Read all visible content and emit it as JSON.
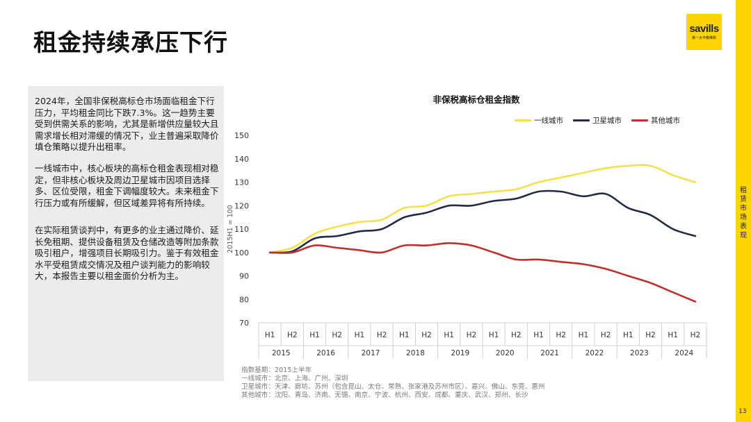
{
  "page": {
    "title": "租金持续承压下行",
    "logo_text": "savills",
    "logo_tagline": "第一太平戴维斯",
    "side_label": "租赁市场表现",
    "page_number": "13"
  },
  "text_panel": {
    "paragraphs": [
      "2024年，全国非保税高标仓市场面临租金下行压力，平均租金同比下跌7.3%。这一趋势主要受到供需关系的影响，尤其是新增供应量较大且需求增长相对滞缓的情况下，业主普遍采取降价填仓策略以提升出租率。",
      "一线城市中，核心板块的高标仓租金表现相对稳定，但非核心板块及周边卫星城市因项目选择多、区位受限，租金下调幅度较大。未来租金下行压力或有所缓解，但区域差异将有所持续。",
      "在实际租赁谈判中，有更多的业主通过降价、延长免租期、提供设备租赁及仓储改造等附加条款吸引租户，增强项目长期吸引力。鉴于有效租金水平受租赁成交情况及租户谈判能力的影响较大，本报告主要以租金面价分析为主。"
    ]
  },
  "chart_data": {
    "type": "line",
    "title": "非保税高标仓租金指数",
    "ylabel": "2015H1 = 100",
    "xlabel": "",
    "ylim": [
      70,
      150
    ],
    "yticks": [
      70,
      80,
      90,
      100,
      110,
      120,
      130,
      140,
      150
    ],
    "legend_position": "top-right",
    "grid": false,
    "categories": [
      "H1",
      "H2",
      "H1",
      "H2",
      "H1",
      "H2",
      "H1",
      "H2",
      "H1",
      "H2",
      "H1",
      "H2",
      "H1",
      "H2",
      "H1",
      "H2",
      "H1",
      "H2",
      "H1",
      "H2"
    ],
    "years": [
      "2015",
      "2016",
      "2017",
      "2018",
      "2019",
      "2020",
      "2021",
      "2022",
      "2023",
      "2024"
    ],
    "series": [
      {
        "name": "一线城市",
        "color": "#f5e14a",
        "values": [
          100,
          102,
          108,
          111,
          113,
          114,
          119,
          120,
          124,
          125,
          126,
          127,
          130,
          132,
          134,
          136,
          137,
          137,
          133,
          130
        ]
      },
      {
        "name": "卫星城市",
        "color": "#232a45",
        "values": [
          100,
          100.5,
          106,
          107,
          109,
          110,
          115,
          117,
          120,
          120,
          122,
          123,
          126,
          126,
          124,
          125,
          119,
          116,
          110,
          107
        ]
      },
      {
        "name": "其他城市",
        "color": "#c0302a",
        "values": [
          100,
          100,
          103,
          102,
          101,
          100,
          103,
          103,
          104,
          103,
          100,
          97,
          97,
          96,
          95,
          93,
          90,
          87,
          83,
          79
        ]
      }
    ]
  },
  "notes": [
    "指数基期：2015上半年",
    "一线城市：北京、上海、广州、深圳",
    "卫星城市：天津、廊坊、苏州（包含昆山、太仓、常熟、张家港及苏州市区）、嘉兴、佛山、东莞、惠州",
    "其他城市：沈阳、青岛、济南、无锡、南京、宁波、杭州、西安、成都、重庆、武汉、郑州、长沙"
  ]
}
